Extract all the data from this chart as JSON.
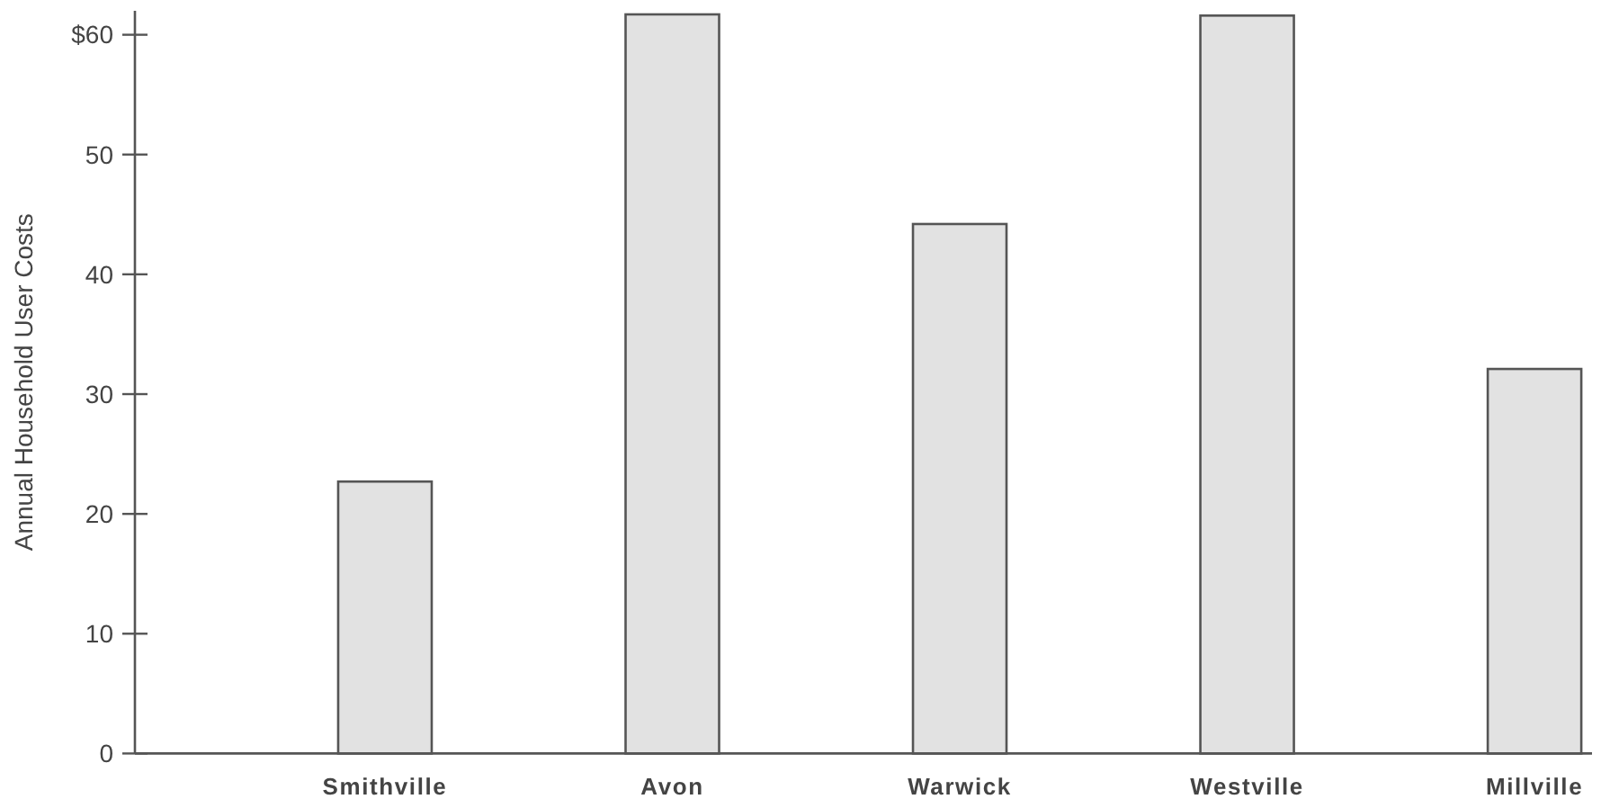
{
  "chart_data": {
    "type": "bar",
    "ylabel": "Annual Household User Costs",
    "categories": [
      "Smithville",
      "Avon",
      "Warwick",
      "Westville",
      "Millville"
    ],
    "values": [
      22.7,
      61.7,
      44.2,
      61.6,
      32.1
    ],
    "color": "#e2e2e2",
    "ylim": [
      0,
      62
    ],
    "yticks": [
      0,
      10,
      20,
      30,
      40,
      50,
      {
        "value": 60,
        "label": "$60"
      }
    ],
    "grid": false
  }
}
